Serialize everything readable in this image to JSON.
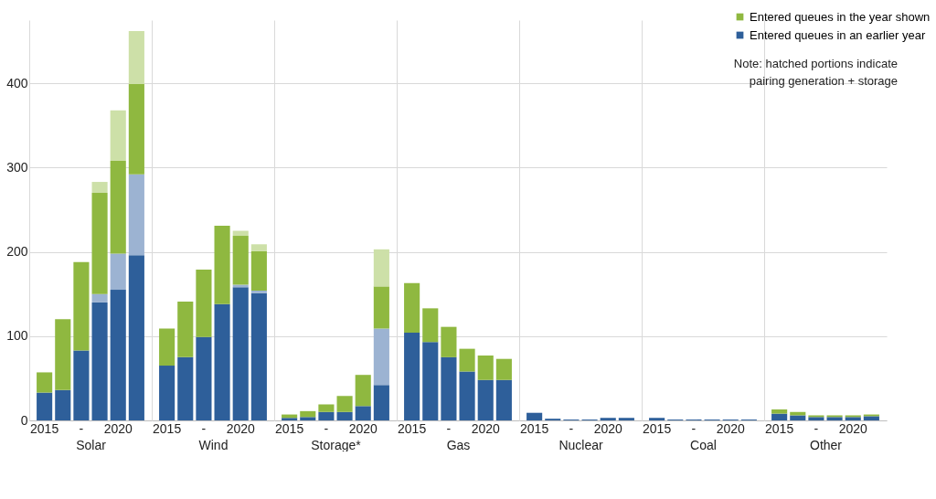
{
  "chart_data": [
    {
      "type": "bar",
      "stacked": true,
      "xlabel": "Solar",
      "categories": [
        "2015",
        null,
        "-",
        null,
        "2020",
        null
      ],
      "ylim": [
        0,
        475
      ],
      "yticks": [
        0,
        100,
        200,
        300,
        400
      ],
      "grid": "y",
      "series": [
        {
          "color": "#2e5f9a",
          "values": [
            33,
            36,
            83,
            140,
            155,
            196
          ]
        },
        {
          "color": "#9cb3d2",
          "values": [
            null,
            null,
            null,
            10,
            43,
            96
          ]
        },
        {
          "color": "#8fb840",
          "values": [
            24,
            84,
            105,
            120,
            110,
            107
          ]
        },
        {
          "color": "#cde0a8",
          "values": [
            null,
            null,
            null,
            13,
            60,
            63
          ]
        }
      ]
    },
    {
      "type": "bar",
      "stacked": true,
      "xlabel": "Wind",
      "categories": [
        "2015",
        null,
        "-",
        null,
        "2020",
        null
      ],
      "ylim": [
        0,
        475
      ],
      "yticks": [
        0,
        100,
        200,
        300,
        400
      ],
      "grid": "y",
      "tick_labels": "x",
      "series": [
        {
          "color": "#2e5f9a",
          "values": [
            65,
            75,
            99,
            138,
            158,
            151
          ]
        },
        {
          "color": "#9cb3d2",
          "values": [
            null,
            null,
            null,
            null,
            3,
            3
          ]
        },
        {
          "color": "#8fb840",
          "values": [
            44,
            66,
            80,
            93,
            58,
            47
          ]
        },
        {
          "color": "#cde0a8",
          "values": [
            null,
            null,
            null,
            null,
            6,
            8
          ]
        }
      ]
    },
    {
      "type": "bar",
      "stacked": true,
      "xlabel": "Storage*",
      "categories": [
        "2015",
        null,
        "-",
        null,
        "2020",
        null
      ],
      "ylim": [
        0,
        475
      ],
      "yticks": [
        0,
        100,
        200,
        300,
        400
      ],
      "grid": "y",
      "tick_labels": "x",
      "series": [
        {
          "color": "#2e5f9a",
          "values": [
            3,
            4,
            10,
            10,
            17,
            42
          ]
        },
        {
          "color": "#9cb3d2",
          "values": [
            null,
            null,
            null,
            null,
            null,
            67
          ]
        },
        {
          "color": "#8fb840",
          "values": [
            4,
            7,
            9,
            19,
            37,
            50
          ]
        },
        {
          "color": "#cde0a8",
          "values": [
            null,
            null,
            null,
            null,
            null,
            44
          ]
        }
      ]
    },
    {
      "type": "bar",
      "stacked": true,
      "xlabel": "Gas",
      "categories": [
        "2015",
        null,
        "-",
        null,
        "2020",
        null
      ],
      "ylim": [
        0,
        475
      ],
      "yticks": [
        0,
        100,
        200,
        300,
        400
      ],
      "grid": "y",
      "tick_labels": "x",
      "series": [
        {
          "color": "#2e5f9a",
          "values": [
            104,
            93,
            75,
            58,
            48,
            48
          ]
        },
        {
          "color": "#8fb840",
          "values": [
            59,
            40,
            36,
            27,
            29,
            25
          ]
        }
      ]
    },
    {
      "type": "bar",
      "stacked": true,
      "xlabel": "Nuclear",
      "categories": [
        "2015",
        null,
        "-",
        null,
        "2020",
        null
      ],
      "ylim": [
        0,
        475
      ],
      "yticks": [
        0,
        100,
        200,
        300,
        400
      ],
      "grid": "y",
      "tick_labels": "x",
      "series": [
        {
          "color": "#2e5f9a",
          "values": [
            9,
            2,
            1,
            1,
            3,
            3
          ]
        }
      ]
    },
    {
      "type": "bar",
      "stacked": true,
      "xlabel": "Coal",
      "categories": [
        "2015",
        null,
        "-",
        null,
        "2020",
        null
      ],
      "ylim": [
        0,
        475
      ],
      "yticks": [
        0,
        100,
        200,
        300,
        400
      ],
      "grid": "y",
      "tick_labels": "x",
      "series": [
        {
          "color": "#2e5f9a",
          "values": [
            3,
            1,
            1,
            1,
            1,
            1
          ]
        }
      ]
    },
    {
      "type": "bar",
      "stacked": true,
      "xlabel": "Other",
      "categories": [
        "2015",
        null,
        "-",
        null,
        "2020",
        null
      ],
      "ylim": [
        0,
        475
      ],
      "yticks": [
        0,
        100,
        200,
        300,
        400
      ],
      "grid": "y",
      "tick_labels": "x",
      "legend": "top",
      "annotations": [
        "Note: hatched portions indicate pairing generation + storage"
      ],
      "series": [
        {
          "name": "Entered queues in an earlier year",
          "color": "#2e5f9a",
          "values": [
            8,
            6,
            4,
            4,
            4,
            5
          ]
        },
        {
          "name": "Entered queues in the year shown",
          "color": "#8fb840",
          "values": [
            5,
            4,
            2,
            2,
            2,
            2
          ]
        }
      ]
    }
  ]
}
